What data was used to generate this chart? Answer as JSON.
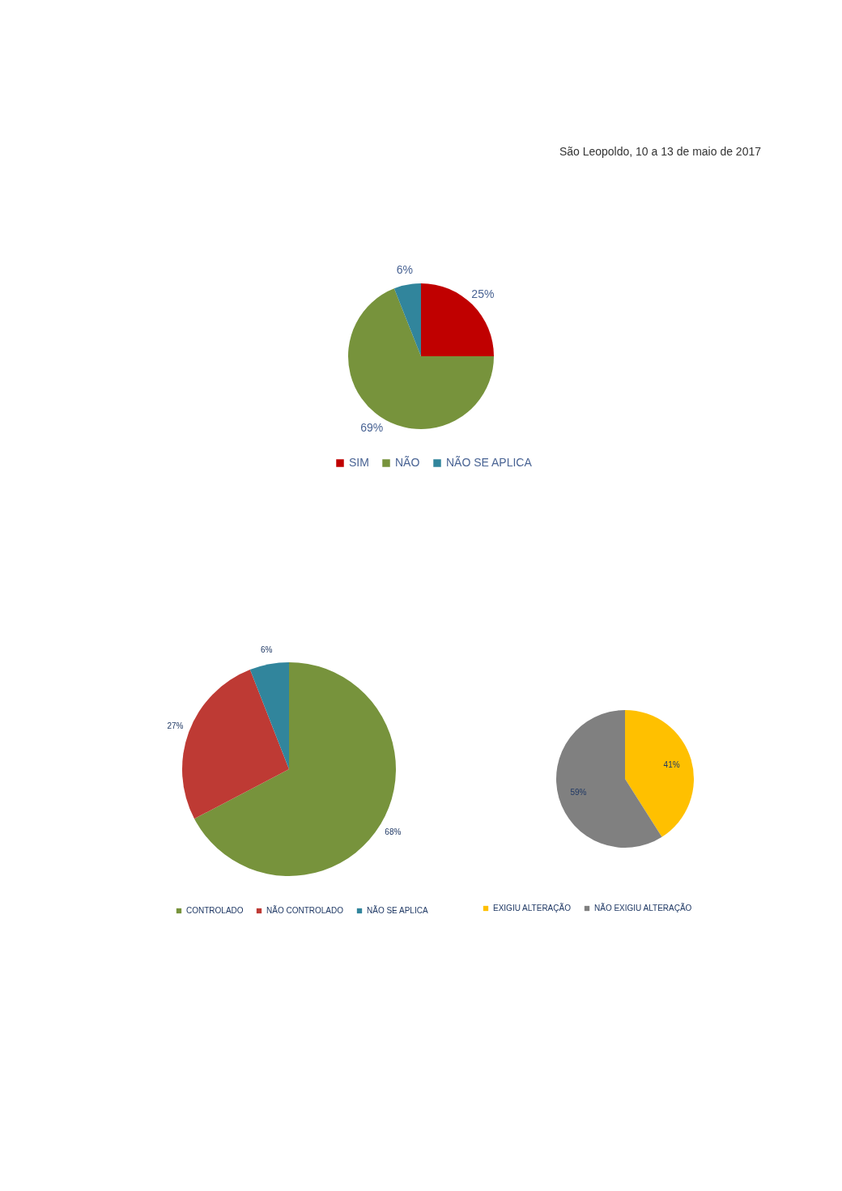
{
  "chart_data": [
    {
      "type": "pie",
      "categories": [
        "SIM",
        "NÃO",
        "NÃO SE APLICA"
      ],
      "values": [
        25,
        69,
        6
      ],
      "colors": [
        "#c00000",
        "#77933c",
        "#31859c"
      ],
      "value_labels": [
        "25%",
        "69%",
        "6%"
      ],
      "legend": "bottom",
      "annotations": [
        "São Leopoldo, 10 a 13 de maio de 2017"
      ]
    },
    {
      "type": "pie",
      "categories": [
        "CONTROLADO",
        "NÃO CONTROLADO",
        "NÃO SE APLICA"
      ],
      "values": [
        68,
        27,
        6
      ],
      "colors": [
        "#77933c",
        "#be3a34",
        "#31859c"
      ],
      "value_labels": [
        "68%",
        "27%",
        "6%"
      ],
      "legend": "bottom"
    },
    {
      "type": "pie",
      "categories": [
        "EXIGIU ALTERAÇÃO",
        "NÃO EXIGIU ALTERAÇÃO"
      ],
      "values": [
        41,
        59
      ],
      "colors": [
        "#ffc000",
        "#808080"
      ],
      "value_labels": [
        "41%",
        "59%"
      ],
      "legend": "bottom"
    }
  ]
}
